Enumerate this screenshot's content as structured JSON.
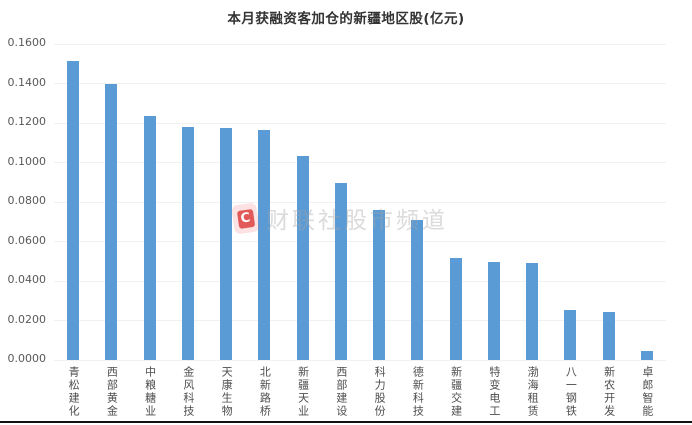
{
  "watermark": {
    "logo_letter": "C",
    "text": "财联社股市频道"
  },
  "chart_data": {
    "type": "bar",
    "title": "本月获融资客加仓的新疆地区股(亿元)",
    "xlabel": "",
    "ylabel": "",
    "unit": "亿元",
    "categories": [
      "青松建化",
      "西部黄金",
      "中粮糖业",
      "金风科技",
      "天康生物",
      "北新路桥",
      "新疆天业",
      "西部建设",
      "科力股份",
      "德新科技",
      "新疆交建",
      "特变电工",
      "渤海租赁",
      "八一钢铁",
      "新农开发",
      "卓郎智能"
    ],
    "values": [
      0.1515,
      0.1395,
      0.1234,
      0.118,
      0.1175,
      0.1164,
      0.1031,
      0.0898,
      0.0757,
      0.071,
      0.0515,
      0.0498,
      0.0491,
      0.0254,
      0.0242,
      0.0045
    ],
    "ylim": [
      0,
      0.16
    ],
    "yticks": [
      "0.1600",
      "0.1400",
      "0.1200",
      "0.1000",
      "0.0800",
      "0.0600",
      "0.0400",
      "0.0200",
      "0.0000"
    ],
    "grid": true,
    "legend": "none",
    "bar_color": "#5B9BD5",
    "gridline_color": "#F1F1F1",
    "axis_label_color": "#595959",
    "title_color": "#333333"
  }
}
